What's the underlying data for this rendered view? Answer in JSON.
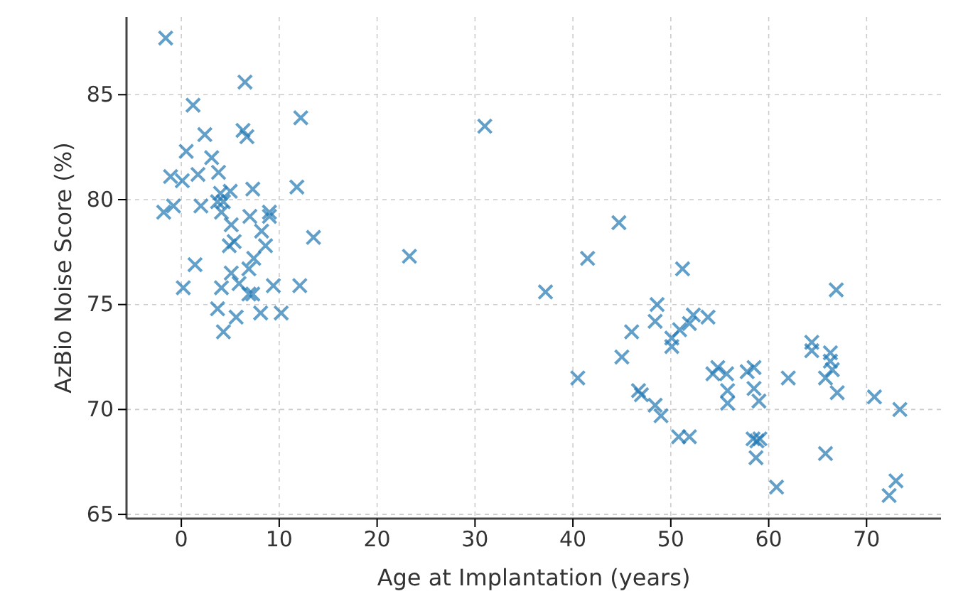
{
  "chart_data": {
    "type": "scatter",
    "xlabel": "Age at Implantation (years)",
    "ylabel": "AzBio Noise Score (%)",
    "xlim": [
      -5.6,
      77.6
    ],
    "xticks": [
      0,
      10,
      20,
      30,
      40,
      50,
      60,
      70
    ],
    "ylim": [
      64.8,
      88.7
    ],
    "yticks": [
      65,
      70,
      75,
      80,
      85
    ],
    "grid": true,
    "marker": "cross",
    "series": [
      {
        "color": "#1f77b4",
        "x": [
          -1.6,
          6.5,
          1.2,
          12.2,
          2.4,
          6.3,
          6.7,
          0.5,
          3.1,
          3.8,
          -1.1,
          0.1,
          1.7,
          7.3,
          11.8,
          4.0,
          5.0,
          3.7,
          4.3,
          -1.8,
          -0.8,
          2.0,
          4.1,
          7.0,
          9.0,
          9.0,
          5.1,
          8.2,
          13.5,
          4.9,
          5.4,
          8.6,
          7.4,
          1.4,
          6.9,
          5.1,
          5.9,
          0.2,
          4.1,
          9.4,
          12.1,
          6.9,
          7.3,
          3.7,
          8.1,
          10.2,
          5.6,
          4.3,
          31.0,
          44.7,
          23.3,
          41.5,
          37.2,
          46.0,
          45.0,
          40.5,
          51.2,
          66.9,
          48.6,
          48.4,
          52.3,
          53.8,
          51.9,
          50.9,
          50.1,
          50.1,
          64.4,
          64.4,
          66.3,
          66.3,
          54.8,
          54.3,
          55.7,
          57.8,
          58.5,
          62.0,
          65.8,
          66.5,
          55.8,
          55.8,
          58.5,
          59.0,
          67.0,
          46.7,
          47.0,
          48.4,
          49.0,
          70.8,
          73.4,
          50.8,
          51.9,
          58.4,
          58.8,
          59.1,
          65.8,
          58.7,
          60.8,
          73.0,
          72.3
        ],
        "values": [
          87.7,
          85.6,
          84.5,
          83.9,
          83.1,
          83.3,
          83.0,
          82.3,
          82.0,
          81.3,
          81.1,
          80.9,
          81.2,
          80.5,
          80.6,
          80.3,
          80.4,
          79.9,
          79.9,
          79.4,
          79.7,
          79.7,
          79.4,
          79.2,
          79.4,
          79.2,
          78.8,
          78.5,
          78.2,
          77.8,
          78.0,
          77.8,
          77.2,
          76.9,
          76.7,
          76.5,
          76.0,
          75.8,
          75.8,
          75.9,
          75.9,
          75.5,
          75.5,
          74.8,
          74.6,
          74.6,
          74.4,
          73.7,
          83.5,
          78.9,
          77.3,
          77.2,
          75.6,
          73.7,
          72.5,
          71.5,
          76.7,
          75.7,
          75.0,
          74.2,
          74.5,
          74.4,
          74.1,
          73.8,
          73.4,
          73.0,
          73.2,
          72.8,
          72.7,
          72.3,
          72.0,
          71.7,
          71.7,
          71.8,
          72.0,
          71.5,
          71.5,
          71.9,
          70.9,
          70.3,
          71.0,
          70.4,
          70.8,
          70.9,
          70.7,
          70.2,
          69.7,
          70.6,
          70.0,
          68.7,
          68.7,
          68.6,
          68.5,
          68.6,
          67.9,
          67.7,
          66.3,
          66.6,
          65.9
        ]
      }
    ]
  }
}
